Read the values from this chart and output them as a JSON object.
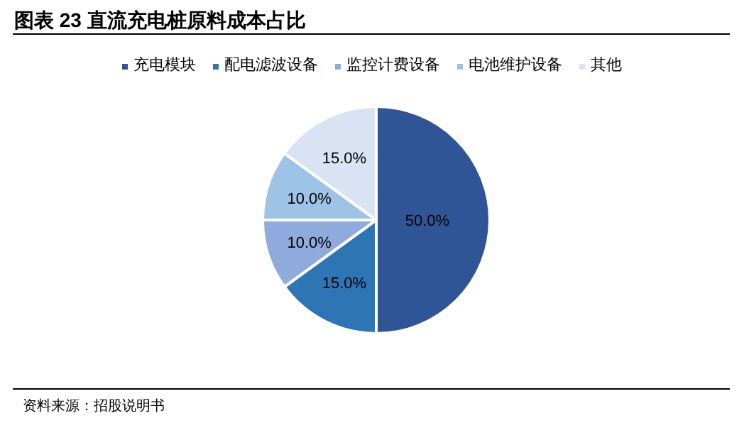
{
  "chart_data": {
    "type": "pie",
    "title": "图表 23 直流充电桩原料成本占比",
    "categories": [
      "充电模块",
      "配电滤波设备",
      "监控计费设备",
      "电池维护设备",
      "其他"
    ],
    "values": [
      50.0,
      15.0,
      10.0,
      10.0,
      15.0
    ],
    "colors": [
      "#2f5597",
      "#2e75b6",
      "#8faadc",
      "#9dc3e6",
      "#dae3f3"
    ],
    "value_labels": [
      "50.0%",
      "15.0%",
      "10.0%",
      "10.0%",
      "15.0%"
    ],
    "legend": "top",
    "annotations": [
      "资料来源：招股说明书"
    ]
  }
}
